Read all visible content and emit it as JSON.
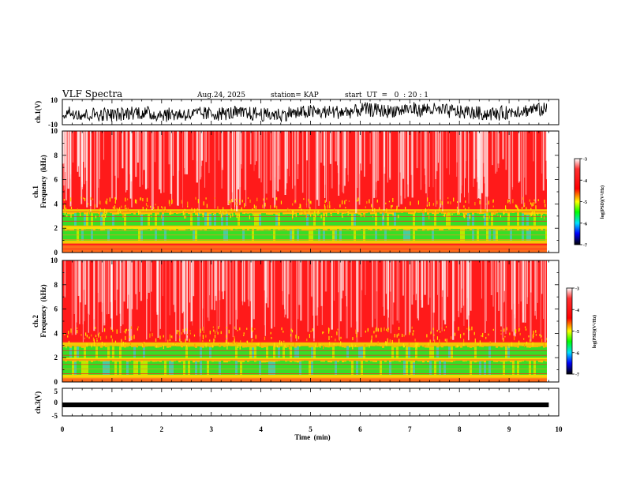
{
  "header": {
    "title": "VLF Spectra",
    "date": "Aug.24, 2025",
    "station": "station= KAP",
    "start": "start  UT  =   0  : 20 : 1"
  },
  "colors": {
    "waveform": "#000000",
    "axes": "#000000",
    "scale": [
      "#ffffff",
      "#ff0000",
      "#ffff00",
      "#00ff00",
      "#00ffff",
      "#0000ff",
      "#000000"
    ]
  },
  "chart_data": [
    {
      "id": "ch1-waveform",
      "type": "line",
      "ylabel": "ch.1(V)",
      "ylim": [
        -10,
        10
      ],
      "yticks": [
        "10",
        "-10"
      ],
      "xlim": [
        0,
        10
      ]
    },
    {
      "id": "ch1-spectrogram",
      "type": "heatmap",
      "ylabel_top": "ch.1",
      "ylabel": "Frequency  (kHz)",
      "ylim": [
        0,
        10
      ],
      "yticks": [
        "0",
        "2",
        "4",
        "6",
        "8",
        "10"
      ],
      "xlim": [
        0,
        10
      ],
      "bands_khz": [
        [
          1.0,
          2.0
        ],
        [
          2.2,
          3.3
        ]
      ],
      "colorbar": {
        "label": "log(PSD)(V²/Hz)",
        "ticks": [
          "-3",
          "-4",
          "-5",
          "-6",
          "-7"
        ],
        "range": [
          -7,
          -3
        ]
      }
    },
    {
      "id": "ch2-spectrogram",
      "type": "heatmap",
      "ylabel_top": "ch.2",
      "ylabel": "Frequency  (kHz)",
      "ylim": [
        0,
        10
      ],
      "yticks": [
        "0",
        "2",
        "4",
        "6",
        "8",
        "10"
      ],
      "xlim": [
        0,
        10
      ],
      "bands_khz": [
        [
          0.6,
          1.8
        ],
        [
          2.0,
          3.0
        ]
      ],
      "colorbar": {
        "label": "log(PSD)(V²/Hz)",
        "ticks": [
          "-3",
          "-4",
          "-5",
          "-6",
          "-7"
        ],
        "range": [
          -7,
          -3
        ]
      }
    },
    {
      "id": "ch3-waveform",
      "type": "line",
      "ylabel": "ch.3(V)",
      "ylim": [
        -5,
        5
      ],
      "yticks": [
        "5",
        "0",
        "-5"
      ],
      "constant_value": -1,
      "xlim": [
        0,
        10
      ]
    }
  ],
  "xaxis": {
    "label": "Time  (min)",
    "ticks": [
      "0",
      "1",
      "2",
      "3",
      "4",
      "5",
      "6",
      "7",
      "8",
      "9",
      "10"
    ],
    "data_end_min": 9.8
  }
}
